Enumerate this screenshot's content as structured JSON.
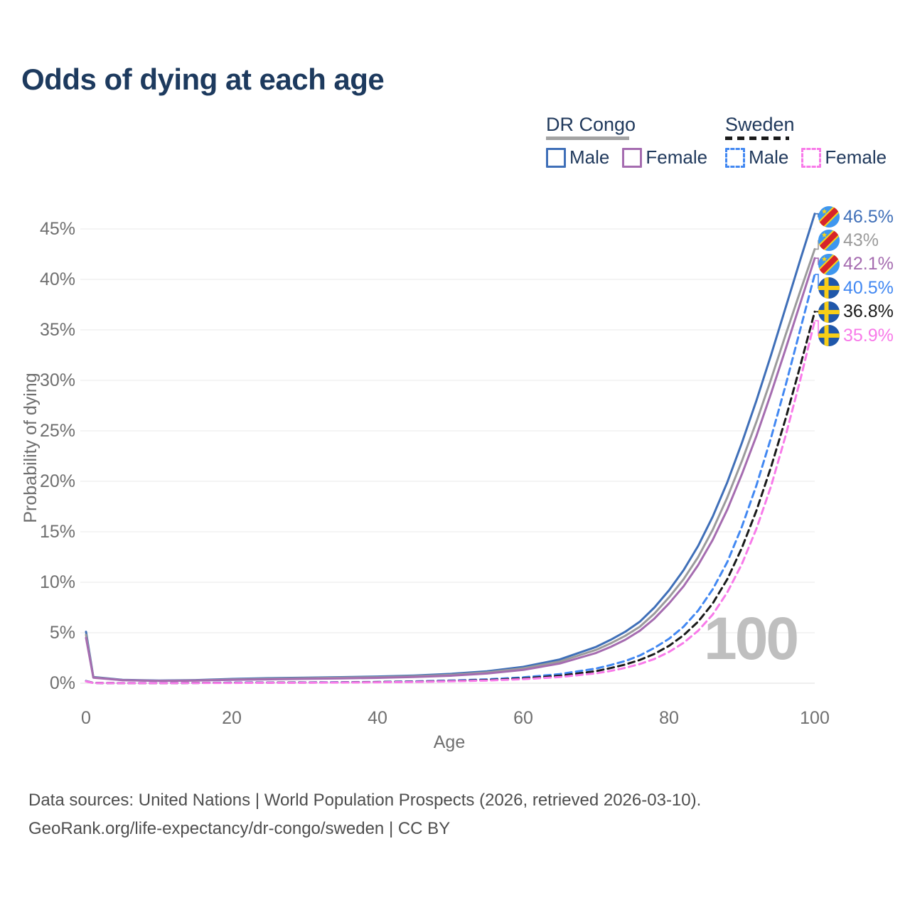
{
  "title": "Odds of dying at each age",
  "watermark": "100",
  "legend": {
    "groups": [
      {
        "label": "DR Congo",
        "line_style": "solid"
      },
      {
        "label": "Sweden",
        "line_style": "dashed"
      }
    ],
    "items": [
      {
        "label": "Male",
        "group": "DR Congo",
        "color_key": "drc_male",
        "dashed": false
      },
      {
        "label": "Female",
        "group": "DR Congo",
        "color_key": "drc_female",
        "dashed": false
      },
      {
        "label": "Male",
        "group": "Sweden",
        "color_key": "swe_male",
        "dashed": true
      },
      {
        "label": "Female",
        "group": "Sweden",
        "color_key": "swe_female",
        "dashed": true
      }
    ]
  },
  "footer": {
    "line1": "Data sources: United Nations | World Population Prospects (2026, retrieved 2026-03-10).",
    "line2": "GeoRank.org/life-expectancy/dr-congo/sweden | CC BY"
  },
  "chart_data": {
    "type": "line",
    "title": "Odds of dying at each age",
    "xlabel": "Age",
    "ylabel": "Probability of dying",
    "xlim": [
      0,
      100
    ],
    "ylim": [
      0,
      47
    ],
    "x_ticks": [
      0,
      20,
      40,
      60,
      80,
      100
    ],
    "y_ticks": [
      "0%",
      "5%",
      "10%",
      "15%",
      "20%",
      "25%",
      "30%",
      "35%",
      "40%",
      "45%"
    ],
    "grid": "horizontal",
    "legend_position": "top-right",
    "colors": {
      "drc_male": "#3f6fb8",
      "drc_all": "#9b9b9b",
      "drc_female": "#a56cb0",
      "swe_male": "#4288f2",
      "swe_all": "#1a1a1a",
      "swe_female": "#f87ae9",
      "title_text": "#1d3a5e",
      "axis_text": "#6f6f6f",
      "gridline": "#e9e9e9",
      "watermark": "#bfbfbf",
      "flag_drc_blue": "#3e97ef",
      "flag_drc_red": "#d6242b",
      "flag_drc_yellow": "#f7d618",
      "flag_swe_blue": "#1f57aa",
      "flag_swe_yellow": "#f8ce17"
    },
    "ages": [
      0,
      1,
      5,
      10,
      15,
      20,
      25,
      30,
      35,
      40,
      45,
      50,
      55,
      60,
      65,
      70,
      72,
      74,
      76,
      78,
      80,
      82,
      84,
      86,
      88,
      90,
      92,
      94,
      96,
      98,
      100
    ],
    "series": [
      {
        "id": "drc-male",
        "name": "DR Congo Male",
        "color_key": "drc_male",
        "dashed": false,
        "flag": "drc",
        "end_label": "46.5%",
        "values": [
          5.1,
          0.62,
          0.33,
          0.26,
          0.31,
          0.42,
          0.5,
          0.55,
          0.6,
          0.66,
          0.76,
          0.92,
          1.18,
          1.62,
          2.35,
          3.6,
          4.3,
          5.1,
          6.1,
          7.5,
          9.2,
          11.2,
          13.6,
          16.5,
          19.9,
          23.8,
          28.0,
          32.5,
          37.2,
          41.9,
          46.5
        ]
      },
      {
        "id": "drc-all",
        "name": "DR Congo (both sexes)",
        "color_key": "drc_all",
        "dashed": false,
        "flag": "drc",
        "end_label": "43%",
        "values": [
          4.8,
          0.58,
          0.31,
          0.24,
          0.28,
          0.37,
          0.44,
          0.49,
          0.54,
          0.59,
          0.68,
          0.83,
          1.07,
          1.47,
          2.15,
          3.3,
          3.95,
          4.7,
          5.6,
          6.9,
          8.5,
          10.3,
          12.5,
          15.2,
          18.4,
          22.0,
          25.9,
          30.1,
          34.5,
          38.8,
          43.0
        ]
      },
      {
        "id": "drc-female",
        "name": "DR Congo Female",
        "color_key": "drc_female",
        "dashed": false,
        "flag": "drc",
        "end_label": "42.1%",
        "values": [
          4.5,
          0.55,
          0.3,
          0.23,
          0.26,
          0.33,
          0.38,
          0.43,
          0.48,
          0.53,
          0.61,
          0.74,
          0.96,
          1.32,
          1.95,
          3.0,
          3.6,
          4.3,
          5.2,
          6.4,
          7.9,
          9.6,
          11.7,
          14.2,
          17.2,
          20.7,
          24.5,
          28.7,
          33.1,
          37.6,
          42.1
        ]
      },
      {
        "id": "swe-male",
        "name": "Sweden Male",
        "color_key": "swe_male",
        "dashed": true,
        "flag": "swe",
        "end_label": "40.5%",
        "values": [
          0.22,
          0.03,
          0.01,
          0.01,
          0.03,
          0.06,
          0.07,
          0.08,
          0.1,
          0.13,
          0.18,
          0.26,
          0.38,
          0.58,
          0.9,
          1.45,
          1.8,
          2.2,
          2.75,
          3.5,
          4.4,
          5.6,
          7.2,
          9.3,
          12.0,
          15.5,
          19.6,
          24.3,
          29.5,
          35.0,
          40.5
        ]
      },
      {
        "id": "swe-all",
        "name": "Sweden (both sexes)",
        "color_key": "swe_all",
        "dashed": true,
        "flag": "swe",
        "end_label": "36.8%",
        "values": [
          0.2,
          0.025,
          0.01,
          0.01,
          0.025,
          0.045,
          0.055,
          0.065,
          0.08,
          0.11,
          0.15,
          0.22,
          0.32,
          0.48,
          0.74,
          1.2,
          1.5,
          1.85,
          2.3,
          2.9,
          3.7,
          4.75,
          6.1,
          7.9,
          10.3,
          13.4,
          17.1,
          21.4,
          26.2,
          31.4,
          36.8
        ]
      },
      {
        "id": "swe-female",
        "name": "Sweden Female",
        "color_key": "swe_female",
        "dashed": true,
        "flag": "swe",
        "end_label": "35.9%",
        "values": [
          0.18,
          0.02,
          0.008,
          0.008,
          0.02,
          0.03,
          0.04,
          0.05,
          0.065,
          0.09,
          0.13,
          0.19,
          0.27,
          0.4,
          0.61,
          0.98,
          1.22,
          1.52,
          1.9,
          2.4,
          3.1,
          4.0,
          5.2,
          6.8,
          9.0,
          11.8,
          15.3,
          19.5,
          24.5,
          30.0,
          35.9
        ]
      }
    ]
  }
}
